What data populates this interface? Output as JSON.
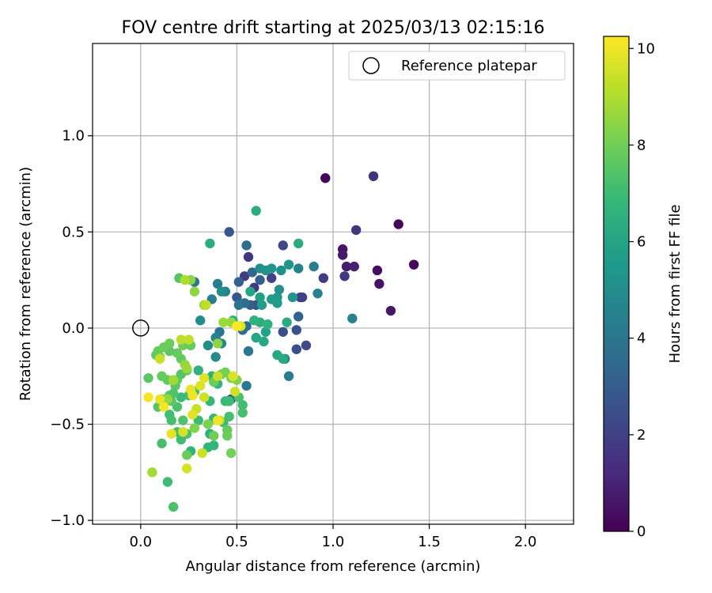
{
  "chart_data": {
    "type": "scatter",
    "title": "FOV centre drift starting at 2025/03/13 02:15:16",
    "xlabel": "Angular distance from reference (arcmin)",
    "ylabel": "Rotation from reference (arcmin)",
    "xlim": [
      -0.25,
      2.25
    ],
    "ylim": [
      -1.02,
      1.48
    ],
    "xticks": [
      0.0,
      0.5,
      1.0,
      1.5,
      2.0
    ],
    "xtick_labels": [
      "0.0",
      "0.5",
      "1.0",
      "1.5",
      "2.0"
    ],
    "yticks": [
      -1.0,
      -0.5,
      0.0,
      0.5,
      1.0
    ],
    "ytick_labels": [
      "−1.0",
      "−0.5",
      "0.0",
      "0.5",
      "1.0"
    ],
    "grid": true,
    "legend": {
      "placement": "top-right",
      "entries": [
        "Reference platepar"
      ]
    },
    "reference_point": {
      "x": 0.0,
      "y": 0.0
    },
    "colorbar": {
      "label": "Hours from first FF file",
      "range": [
        0,
        10.25
      ],
      "ticks": [
        0,
        2,
        4,
        6,
        8,
        10
      ],
      "tick_labels": [
        "0",
        "2",
        "4",
        "6",
        "8",
        "10"
      ],
      "colormap": "viridis",
      "colormap_stops": [
        "#440154",
        "#482878",
        "#3e4989",
        "#31688e",
        "#26828e",
        "#1f9e89",
        "#35b779",
        "#6ece58",
        "#b5de2b",
        "#fde725"
      ]
    },
    "series": [
      {
        "points": [
          [
            0.96,
            0.78,
            0.1
          ],
          [
            1.34,
            0.54,
            0.2
          ],
          [
            1.42,
            0.33,
            0.3
          ],
          [
            1.23,
            0.3,
            0.4
          ],
          [
            1.24,
            0.23,
            0.5
          ],
          [
            1.3,
            0.09,
            0.6
          ],
          [
            1.05,
            0.41,
            0.5
          ],
          [
            1.05,
            0.38,
            0.7
          ],
          [
            1.07,
            0.32,
            0.8
          ],
          [
            1.11,
            0.32,
            0.9
          ],
          [
            1.21,
            0.79,
            1.5
          ],
          [
            1.12,
            0.51,
            1.6
          ],
          [
            1.06,
            0.27,
            1.7
          ],
          [
            0.95,
            0.26,
            1.8
          ],
          [
            0.56,
            0.37,
            1.6
          ],
          [
            0.59,
            0.21,
            1.7
          ],
          [
            0.54,
            0.27,
            1.8
          ],
          [
            0.74,
            0.43,
            2.2
          ],
          [
            0.83,
            0.16,
            1.9
          ],
          [
            0.84,
            0.16,
            2.0
          ],
          [
            0.68,
            0.26,
            2.1
          ],
          [
            0.86,
            -0.09,
            2.3
          ],
          [
            0.81,
            -0.11,
            2.5
          ],
          [
            0.81,
            -0.01,
            2.6
          ],
          [
            0.74,
            -0.02,
            2.5
          ],
          [
            0.46,
            0.5,
            2.8
          ],
          [
            0.6,
            0.12,
            2.6
          ],
          [
            0.5,
            0.16,
            2.8
          ],
          [
            0.47,
            -0.37,
            2.5
          ],
          [
            0.57,
            0.12,
            3.0
          ],
          [
            0.82,
            0.06,
            3.2
          ],
          [
            0.55,
            0.43,
            3.6
          ],
          [
            0.58,
            0.29,
            3.4
          ],
          [
            0.62,
            0.25,
            3.0
          ],
          [
            0.51,
            0.24,
            3.2
          ],
          [
            0.54,
            0.13,
            3.7
          ],
          [
            0.51,
            0.12,
            3.9
          ],
          [
            0.55,
            0.01,
            3.5
          ],
          [
            0.53,
            -0.01,
            3.7
          ],
          [
            0.41,
            -0.02,
            4.0
          ],
          [
            0.4,
            0.23,
            4.3
          ],
          [
            0.44,
            0.19,
            4.5
          ],
          [
            0.28,
            0.24,
            4.0
          ],
          [
            0.37,
            0.15,
            4.4
          ],
          [
            0.56,
            -0.12,
            4.1
          ],
          [
            0.55,
            -0.3,
            4.2
          ],
          [
            0.9,
            0.32,
            4.4
          ],
          [
            0.92,
            0.18,
            4.5
          ],
          [
            0.82,
            0.31,
            4.6
          ],
          [
            1.1,
            0.05,
            4.5
          ],
          [
            0.77,
            -0.25,
            4.3
          ],
          [
            0.75,
            -0.16,
            4.6
          ],
          [
            0.39,
            -0.05,
            4.6
          ],
          [
            0.42,
            -0.08,
            4.8
          ],
          [
            0.39,
            -0.15,
            4.9
          ],
          [
            0.42,
            0.19,
            5.0
          ],
          [
            0.31,
            0.04,
            5.0
          ],
          [
            0.35,
            -0.09,
            5.0
          ],
          [
            0.62,
            0.31,
            5.1
          ],
          [
            0.65,
            0.3,
            5.2
          ],
          [
            0.68,
            0.31,
            5.3
          ],
          [
            0.73,
            0.3,
            5.1
          ],
          [
            0.77,
            0.33,
            5.3
          ],
          [
            0.72,
            0.2,
            5.2
          ],
          [
            0.79,
            0.16,
            5.4
          ],
          [
            0.71,
            0.16,
            5.5
          ],
          [
            0.68,
            0.15,
            5.6
          ],
          [
            0.71,
            0.13,
            5.6
          ],
          [
            0.63,
            0.12,
            5.7
          ],
          [
            0.62,
            0.16,
            5.8
          ],
          [
            0.57,
            0.19,
            6.0
          ],
          [
            0.65,
            -0.02,
            5.9
          ],
          [
            0.6,
            -0.05,
            6.0
          ],
          [
            0.64,
            -0.07,
            6.1
          ],
          [
            0.71,
            -0.14,
            6.2
          ],
          [
            0.74,
            -0.16,
            6.2
          ],
          [
            0.82,
            0.44,
            6.3
          ],
          [
            0.6,
            0.61,
            6.3
          ],
          [
            0.36,
            0.44,
            6.4
          ],
          [
            0.62,
            0.03,
            6.4
          ],
          [
            0.66,
            0.02,
            6.5
          ],
          [
            0.59,
            0.04,
            6.6
          ],
          [
            0.76,
            0.03,
            6.3
          ],
          [
            0.48,
            0.04,
            6.6
          ],
          [
            0.3,
            -0.22,
            6.5
          ],
          [
            0.37,
            -0.25,
            6.6
          ],
          [
            0.4,
            -0.29,
            6.7
          ],
          [
            0.36,
            -0.38,
            6.8
          ],
          [
            0.38,
            -0.47,
            6.9
          ],
          [
            0.36,
            -0.55,
            6.5
          ],
          [
            0.38,
            -0.61,
            6.7
          ],
          [
            0.35,
            -0.62,
            6.8
          ],
          [
            0.3,
            -0.48,
            7.0
          ],
          [
            0.26,
            -0.64,
            6.6
          ],
          [
            0.44,
            -0.38,
            6.9
          ],
          [
            0.43,
            -0.49,
            7.0
          ],
          [
            0.46,
            -0.46,
            7.2
          ],
          [
            0.51,
            -0.36,
            7.3
          ],
          [
            0.53,
            -0.4,
            7.1
          ],
          [
            0.53,
            -0.44,
            7.2
          ],
          [
            0.46,
            -0.38,
            7.0
          ],
          [
            0.28,
            -0.33,
            7.1
          ],
          [
            0.25,
            -0.35,
            7.2
          ],
          [
            0.21,
            -0.36,
            7.0
          ],
          [
            0.19,
            -0.41,
            7.3
          ],
          [
            0.15,
            -0.45,
            7.1
          ],
          [
            0.16,
            -0.48,
            7.2
          ],
          [
            0.19,
            -0.54,
            7.2
          ],
          [
            0.24,
            -0.55,
            7.3
          ],
          [
            0.21,
            -0.58,
            7.1
          ],
          [
            0.22,
            -0.48,
            7.4
          ],
          [
            0.09,
            -0.41,
            7.5
          ],
          [
            0.11,
            -0.37,
            7.3
          ],
          [
            0.13,
            -0.38,
            7.4
          ],
          [
            0.16,
            -0.38,
            7.6
          ],
          [
            0.15,
            -0.35,
            7.5
          ],
          [
            0.18,
            -0.3,
            7.6
          ],
          [
            0.17,
            -0.34,
            7.4
          ],
          [
            0.14,
            -0.27,
            7.7
          ],
          [
            0.19,
            -0.27,
            7.8
          ],
          [
            0.21,
            -0.24,
            7.5
          ],
          [
            0.24,
            -0.22,
            7.6
          ],
          [
            0.21,
            -0.16,
            7.7
          ],
          [
            0.19,
            -0.13,
            7.8
          ],
          [
            0.15,
            -0.12,
            7.6
          ],
          [
            0.09,
            -0.12,
            7.8
          ],
          [
            0.08,
            -0.14,
            7.7
          ],
          [
            0.12,
            -0.1,
            7.9
          ],
          [
            0.1,
            -0.15,
            8.0
          ],
          [
            0.15,
            -0.08,
            7.9
          ],
          [
            0.22,
            -0.09,
            8.0
          ],
          [
            0.25,
            -0.07,
            7.7
          ],
          [
            0.26,
            -0.09,
            7.8
          ],
          [
            0.2,
            0.26,
            7.5
          ],
          [
            0.04,
            -0.26,
            7.6
          ],
          [
            0.11,
            -0.25,
            7.8
          ],
          [
            0.11,
            -0.6,
            7.2
          ],
          [
            0.14,
            -0.8,
            7.0
          ],
          [
            0.17,
            -0.93,
            7.3
          ],
          [
            0.24,
            -0.66,
            7.9
          ],
          [
            0.38,
            -0.28,
            7.9
          ],
          [
            0.42,
            -0.24,
            8.0
          ],
          [
            0.44,
            -0.23,
            8.1
          ],
          [
            0.47,
            -0.26,
            8.2
          ],
          [
            0.5,
            -0.27,
            8.3
          ],
          [
            0.45,
            -0.53,
            7.8
          ],
          [
            0.45,
            -0.56,
            7.9
          ],
          [
            0.47,
            -0.65,
            8.1
          ],
          [
            0.38,
            -0.56,
            8.0
          ],
          [
            0.35,
            -0.5,
            8.2
          ],
          [
            0.28,
            -0.52,
            8.3
          ],
          [
            0.26,
            0.25,
            8.4
          ],
          [
            0.28,
            0.19,
            8.5
          ],
          [
            0.33,
            0.12,
            8.6
          ],
          [
            0.43,
            0.03,
            8.7
          ],
          [
            0.47,
            0.03,
            8.6
          ],
          [
            0.4,
            -0.08,
            8.5
          ],
          [
            0.23,
            -0.19,
            8.6
          ],
          [
            0.24,
            -0.21,
            8.7
          ],
          [
            0.17,
            -0.27,
            8.8
          ],
          [
            0.14,
            -0.37,
            8.6
          ],
          [
            0.06,
            -0.75,
            8.8
          ],
          [
            0.24,
            -0.73,
            9.6
          ],
          [
            0.32,
            -0.65,
            9.5
          ],
          [
            0.16,
            -0.55,
            9.9
          ],
          [
            0.22,
            -0.54,
            9.6
          ],
          [
            0.29,
            -0.42,
            9.4
          ],
          [
            0.27,
            -0.45,
            9.8
          ],
          [
            0.33,
            -0.36,
            9.5
          ],
          [
            0.31,
            -0.3,
            9.7
          ],
          [
            0.26,
            -0.32,
            9.9
          ],
          [
            0.27,
            -0.35,
            10.0
          ],
          [
            0.04,
            -0.36,
            10.1
          ],
          [
            0.12,
            -0.41,
            10.1
          ],
          [
            0.1,
            -0.37,
            9.9
          ],
          [
            0.33,
            -0.26,
            9.8
          ],
          [
            0.4,
            -0.25,
            9.4
          ],
          [
            0.41,
            -0.48,
            9.3
          ],
          [
            0.4,
            -0.48,
            10.0
          ],
          [
            0.48,
            -0.25,
            9.7
          ],
          [
            0.49,
            -0.33,
            9.5
          ],
          [
            0.52,
            0.01,
            9.7
          ],
          [
            0.5,
            0.01,
            10.2
          ],
          [
            0.34,
            0.12,
            9.3
          ],
          [
            0.23,
            0.25,
            9.0
          ],
          [
            0.21,
            -0.06,
            9.2
          ],
          [
            0.25,
            -0.06,
            9.3
          ],
          [
            0.1,
            -0.16,
            9.4
          ]
        ]
      }
    ]
  }
}
